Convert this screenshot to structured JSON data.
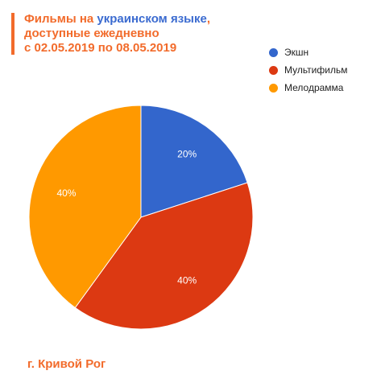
{
  "title": {
    "part1": "Фильмы на ",
    "highlight": "украинском языке",
    "part2": ",",
    "line2": "доступные ежедневно",
    "line3": "с 02.05.2019 по 08.05.2019"
  },
  "footer": "г. Кривой Рог",
  "colors": {
    "accent": "#f26b2b",
    "highlight": "#3b6bd0"
  },
  "chart_data": {
    "type": "pie",
    "slices": [
      {
        "label": "Экшн",
        "value": 20,
        "value_label": "20%",
        "color": "#3366cc"
      },
      {
        "label": "Мультифильм",
        "value": 40,
        "value_label": "40%",
        "color": "#dc3912"
      },
      {
        "label": "Мелодрамма",
        "value": 40,
        "value_label": "40%",
        "color": "#ff9900"
      }
    ],
    "legend_position": "top-right"
  }
}
